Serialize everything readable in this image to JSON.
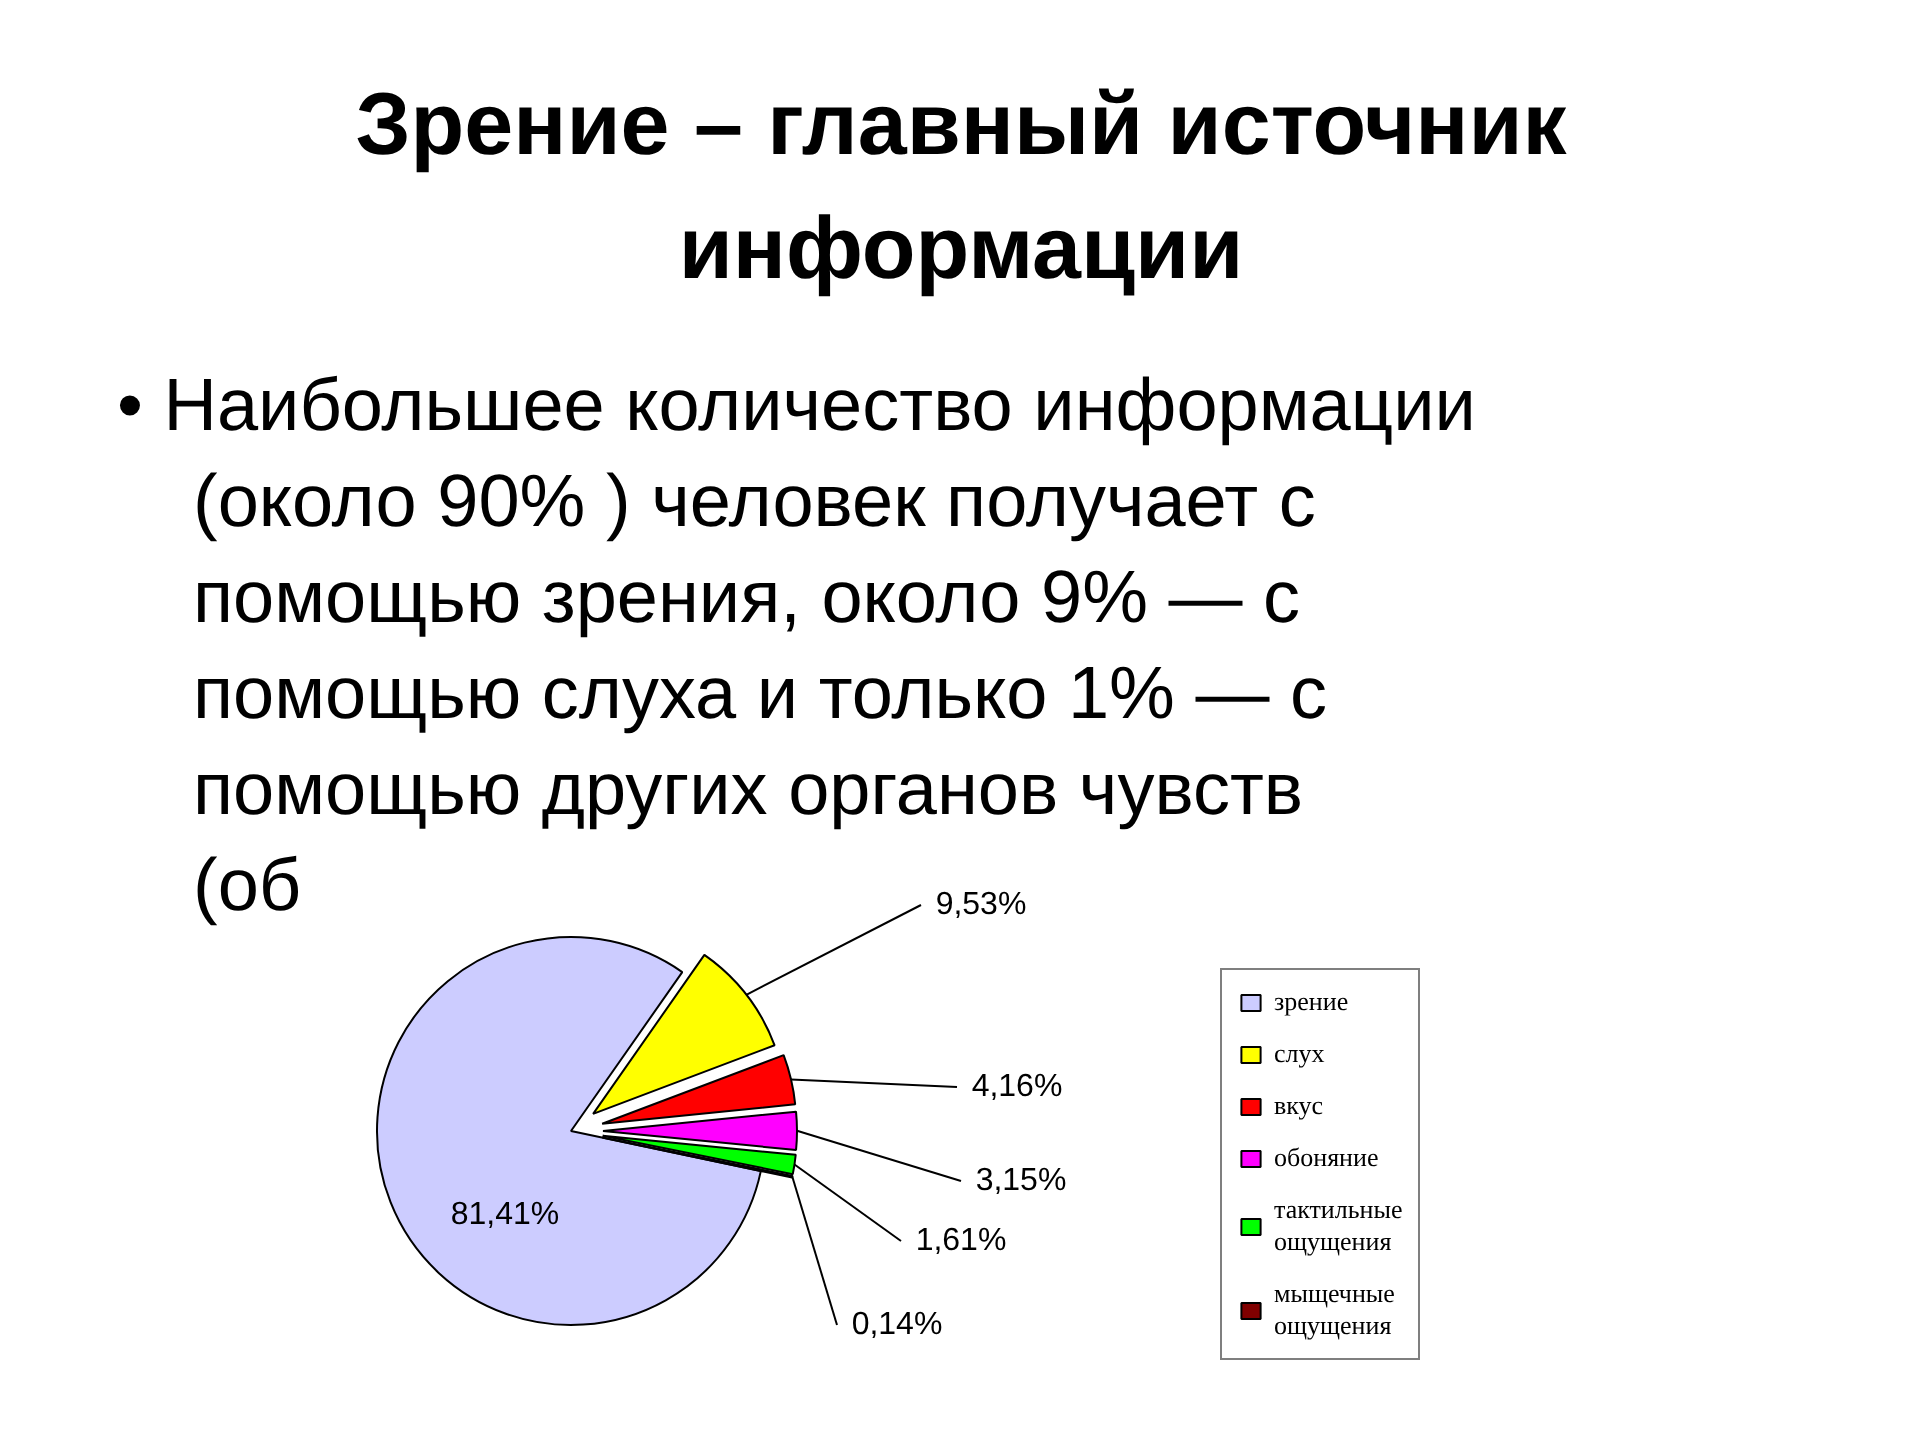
{
  "chart_data": {
    "type": "pie",
    "title": "Зрение – главный источник\nинформации",
    "subtitle": "• Наибольшее количество информации\n(около 90% ) человек получает с\nпомощью зрения, около 9% — с\nпомощью слуха и только 1% — с\nпомощью других органов чувств\n(об",
    "categories": [
      "зрение",
      "слух",
      "вкус",
      "обоняние",
      "тактильные\nощущения",
      "мыщечные\nощущения"
    ],
    "values": [
      81.41,
      9.53,
      4.16,
      3.15,
      1.61,
      0.14
    ],
    "value_labels": [
      "81,41%",
      "9,53%",
      "4,16%",
      "3,15%",
      "1,61%",
      "0,14%"
    ],
    "colors": [
      "#ccccff",
      "#ffff00",
      "#ff0000",
      "#ff00ff",
      "#00ff00",
      "#800000"
    ],
    "legend": "right"
  }
}
